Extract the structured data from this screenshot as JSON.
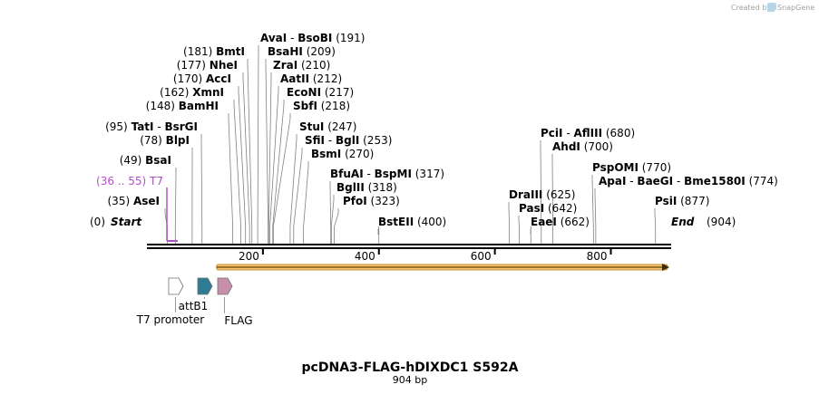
{
  "credit": {
    "text": "Created by",
    "brand": "SnapGene"
  },
  "map": {
    "length": 904,
    "title": "pcDNA3-FLAG-hDIXDC1 S592A",
    "subtitle": "904 bp",
    "ticks": [
      200,
      400,
      600,
      800
    ],
    "start_label": {
      "name": "Start",
      "pos": "(0)"
    },
    "end_label": {
      "name": "End",
      "pos": "(904)"
    },
    "enzymes": [
      {
        "id": "asei",
        "prefix": "(35)",
        "parts": [
          "AseI"
        ],
        "suffix": "",
        "site": 35
      },
      {
        "id": "t7",
        "prefix": "(36 .. 55)",
        "parts": [
          "T7"
        ],
        "suffix": "",
        "site": 36,
        "primer": true
      },
      {
        "id": "bsai",
        "prefix": "(49)",
        "parts": [
          "BsaI"
        ],
        "suffix": "",
        "site": 49
      },
      {
        "id": "blpi",
        "prefix": "(78)",
        "parts": [
          "BlpI"
        ],
        "suffix": "",
        "site": 78
      },
      {
        "id": "tati",
        "prefix": "(95)",
        "parts": [
          "TatI",
          "BsrGI"
        ],
        "suffix": "",
        "site": 95
      },
      {
        "id": "bamhi",
        "prefix": "(148)",
        "parts": [
          "BamHI"
        ],
        "suffix": "",
        "site": 148
      },
      {
        "id": "xmni",
        "prefix": "(162)",
        "parts": [
          "XmnI"
        ],
        "suffix": "",
        "site": 162
      },
      {
        "id": "acci",
        "prefix": "(170)",
        "parts": [
          "AccI"
        ],
        "suffix": "",
        "site": 170
      },
      {
        "id": "nhei",
        "prefix": "(177)",
        "parts": [
          "NheI"
        ],
        "suffix": "",
        "site": 177
      },
      {
        "id": "bmti",
        "prefix": "(181)",
        "parts": [
          "BmtI"
        ],
        "suffix": "",
        "site": 181
      },
      {
        "id": "avai",
        "prefix": "",
        "parts": [
          "AvaI",
          "BsoBI"
        ],
        "suffix": "(191)",
        "site": 191
      },
      {
        "id": "bsahi",
        "prefix": "",
        "parts": [
          "BsaHI"
        ],
        "suffix": "(209)",
        "site": 209
      },
      {
        "id": "zrai",
        "prefix": "",
        "parts": [
          "ZraI"
        ],
        "suffix": "(210)",
        "site": 210
      },
      {
        "id": "aatii",
        "prefix": "",
        "parts": [
          "AatII"
        ],
        "suffix": "(212)",
        "site": 212
      },
      {
        "id": "econi",
        "prefix": "",
        "parts": [
          "EcoNI"
        ],
        "suffix": "(217)",
        "site": 217
      },
      {
        "id": "sbfi",
        "prefix": "",
        "parts": [
          "SbfI"
        ],
        "suffix": "(218)",
        "site": 218
      },
      {
        "id": "stui",
        "prefix": "",
        "parts": [
          "StuI"
        ],
        "suffix": "(247)",
        "site": 247
      },
      {
        "id": "sfii",
        "prefix": "",
        "parts": [
          "SfiI",
          "BglI"
        ],
        "suffix": "(253)",
        "site": 253
      },
      {
        "id": "bsmi",
        "prefix": "",
        "parts": [
          "BsmI"
        ],
        "suffix": "(270)",
        "site": 270
      },
      {
        "id": "bfuai",
        "prefix": "",
        "parts": [
          "BfuAI",
          "BspMI"
        ],
        "suffix": "(317)",
        "site": 317
      },
      {
        "id": "bglii",
        "prefix": "",
        "parts": [
          "BglII"
        ],
        "suffix": "(318)",
        "site": 318
      },
      {
        "id": "pfoi",
        "prefix": "",
        "parts": [
          "PfoI"
        ],
        "suffix": "(323)",
        "site": 323
      },
      {
        "id": "bsteii",
        "prefix": "",
        "parts": [
          "BstEII"
        ],
        "suffix": "(400)",
        "site": 400
      },
      {
        "id": "draiii",
        "prefix": "",
        "parts": [
          "DraIII"
        ],
        "suffix": "(625)",
        "site": 625
      },
      {
        "id": "pasi",
        "prefix": "",
        "parts": [
          "PasI"
        ],
        "suffix": "(642)",
        "site": 642
      },
      {
        "id": "eaei",
        "prefix": "",
        "parts": [
          "EaeI"
        ],
        "suffix": "(662)",
        "site": 662
      },
      {
        "id": "pcii",
        "prefix": "",
        "parts": [
          "PciI",
          "AflIII"
        ],
        "suffix": "(680)",
        "site": 680
      },
      {
        "id": "ahdi",
        "prefix": "",
        "parts": [
          "AhdI"
        ],
        "suffix": "(700)",
        "site": 700
      },
      {
        "id": "pspomi",
        "prefix": "",
        "parts": [
          "PspOMI"
        ],
        "suffix": "(770)",
        "site": 770
      },
      {
        "id": "apai",
        "prefix": "",
        "parts": [
          "ApaI",
          "BaeGI",
          "Bme1580I"
        ],
        "suffix": "(774)",
        "site": 774
      },
      {
        "id": "psii",
        "prefix": "",
        "parts": [
          "PsiI"
        ],
        "suffix": "(877)",
        "site": 877
      }
    ],
    "features": [
      {
        "id": "t7-promoter",
        "label": "T7 promoter",
        "start": 36,
        "end": 55,
        "color": "#ffffff"
      },
      {
        "id": "attb1",
        "label": "attB1",
        "start": 86,
        "end": 110,
        "color": "#2e7b94"
      },
      {
        "id": "flag",
        "label": "FLAG",
        "start": 121,
        "end": 144,
        "color": "#c890a8"
      }
    ],
    "orf": {
      "start": 120,
      "end": 904,
      "color": "#f5c070"
    }
  }
}
